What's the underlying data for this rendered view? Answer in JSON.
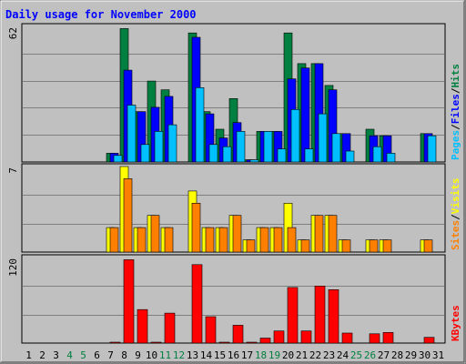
{
  "chart_data": {
    "type": "bar",
    "title": "Daily usage for November 2000",
    "categories": [
      "1",
      "2",
      "3",
      "4",
      "5",
      "6",
      "7",
      "8",
      "9",
      "10",
      "11",
      "12",
      "13",
      "14",
      "15",
      "16",
      "17",
      "18",
      "19",
      "20",
      "21",
      "22",
      "23",
      "24",
      "25",
      "26",
      "27",
      "28",
      "29",
      "30",
      "31"
    ],
    "weekend_days": [
      "4",
      "5",
      "11",
      "12",
      "18",
      "19",
      "25",
      "26"
    ],
    "panels": [
      {
        "id": "hits",
        "max_label": "62",
        "ylim": [
          0,
          62
        ],
        "right_label": {
          "parts": [
            "Pages",
            "/",
            "Files",
            "/",
            "Hits"
          ]
        },
        "series": [
          {
            "name": "Hits",
            "color": "#008040",
            "values": [
              0,
              0,
              0,
              0,
              0,
              0,
              4,
              61,
              23,
              37,
              33,
              0,
              59,
              23,
              15,
              29,
              1,
              14,
              14,
              59,
              45,
              45,
              35,
              13,
              0,
              15,
              12,
              0,
              0,
              13,
              0
            ]
          },
          {
            "name": "Files",
            "color": "#0000ff",
            "values": [
              0,
              0,
              0,
              0,
              0,
              0,
              4,
              42,
              23,
              25,
              30,
              0,
              57,
              22,
              11,
              18,
              1,
              14,
              14,
              38,
              43,
              45,
              33,
              13,
              0,
              12,
              12,
              0,
              0,
              13,
              0
            ]
          },
          {
            "name": "Pages",
            "color": "#00c0ff",
            "values": [
              0,
              0,
              0,
              0,
              0,
              0,
              3,
              26,
              8,
              14,
              17,
              0,
              34,
              8,
              7,
              14,
              1,
              14,
              6,
              24,
              6,
              22,
              13,
              5,
              0,
              7,
              4,
              0,
              0,
              12,
              0
            ]
          }
        ]
      },
      {
        "id": "visits",
        "max_label": "7",
        "ylim": [
          0,
          7
        ],
        "right_label": {
          "parts": [
            "Sites",
            "/",
            "Visits"
          ]
        },
        "series": [
          {
            "name": "Visits",
            "color": "#ffff00",
            "values": [
              0,
              0,
              0,
              0,
              0,
              0,
              2,
              7,
              2,
              3,
              2,
              0,
              5,
              2,
              2,
              3,
              1,
              2,
              2,
              4,
              1,
              3,
              3,
              1,
              0,
              1,
              1,
              0,
              0,
              1,
              0
            ]
          },
          {
            "name": "Sites",
            "color": "#ff8000",
            "values": [
              0,
              0,
              0,
              0,
              0,
              0,
              2,
              6,
              2,
              3,
              2,
              0,
              4,
              2,
              2,
              3,
              1,
              2,
              2,
              2,
              1,
              3,
              3,
              1,
              0,
              1,
              1,
              0,
              0,
              1,
              0
            ]
          }
        ]
      },
      {
        "id": "kbytes",
        "max_label": "120",
        "ylim": [
          0,
          120
        ],
        "right_label": {
          "parts": [
            "KBytes"
          ]
        },
        "series": [
          {
            "name": "KBytes",
            "color": "#ff0000",
            "values": [
              0,
              0,
              0,
              0,
              0,
              0,
              1,
              117,
              47,
              1,
              42,
              0,
              110,
              37,
              1,
              25,
              1,
              7,
              17,
              78,
              17,
              80,
              75,
              14,
              0,
              13,
              15,
              0,
              0,
              8,
              0
            ]
          }
        ]
      }
    ],
    "colors": {
      "background": "#c0c0c0",
      "title": "#0000ff",
      "gridline": "#808080",
      "hits": "#008040",
      "files": "#0000ff",
      "pages": "#00c0ff",
      "visits": "#ffff00",
      "sites": "#ff8000",
      "kbytes": "#ff0000",
      "weekday_label": "#000000",
      "weekend_label": "#008040"
    }
  }
}
